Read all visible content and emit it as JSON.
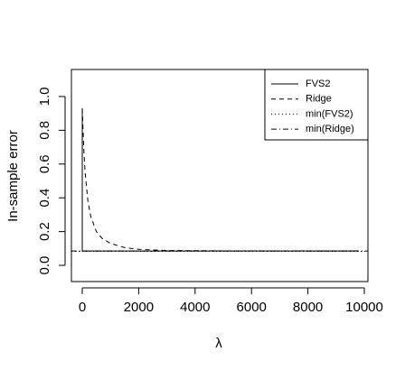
{
  "chart_data": {
    "type": "line",
    "x_label": "λ",
    "y_label": "In-sample error",
    "xlim": [
      -385,
      10128
    ],
    "ylim": [
      -0.096,
      1.16
    ],
    "xticks": [
      0,
      2000,
      4000,
      6000,
      8000,
      10000
    ],
    "yticks": [
      {
        "value": 0,
        "label": "0.0"
      },
      {
        "value": 0.2,
        "label": "0.2"
      },
      {
        "value": 0.4,
        "label": "0.4"
      },
      {
        "value": 0.6,
        "label": "0.6"
      },
      {
        "value": 0.8,
        "label": "0.8"
      },
      {
        "value": 1,
        "label": "1.0"
      }
    ],
    "legend": "top-right",
    "series": [
      {
        "name": "FVS2",
        "color": "#000000",
        "dash": "none",
        "x": [
          0,
          0,
          9800
        ],
        "values": [
          0.93,
          0.085,
          0.085
        ]
      },
      {
        "name": "Ridge",
        "color": "#000000",
        "dash": "5 4",
        "x": [
          0,
          50,
          100,
          200,
          300,
          500,
          700,
          1000,
          1500,
          2000,
          3000,
          5000,
          9800
        ],
        "values": [
          0.93,
          0.7,
          0.55,
          0.38,
          0.29,
          0.2,
          0.16,
          0.13,
          0.105,
          0.095,
          0.088,
          0.086,
          0.085
        ]
      },
      {
        "name": "min(FVS2)",
        "color": "#000000",
        "dash": "1 3",
        "x": [
          -385,
          10128
        ],
        "values": [
          0.083,
          0.083
        ]
      },
      {
        "name": "min(Ridge)",
        "color": "#000000",
        "dash": "6 3 1 3",
        "x": [
          -385,
          10128
        ],
        "values": [
          0.085,
          0.085
        ]
      }
    ]
  }
}
